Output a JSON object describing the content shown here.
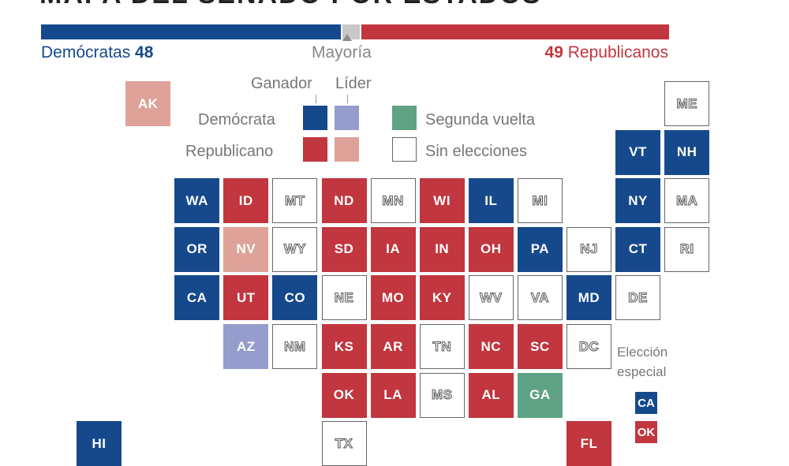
{
  "title": "MAPA DEL SENADO POR ESTADOS",
  "colors": {
    "dem_winner": "#16498c",
    "dem_leader": "#959dcc",
    "rep_winner": "#c1363f",
    "rep_leader": "#dea298",
    "runoff": "#5fa384",
    "none": "#ffffff",
    "majority_gap": "#c8c8c8"
  },
  "summary": {
    "dem_label": "Demócratas",
    "dem_count": "48",
    "rep_count": "49",
    "rep_label": "Republicanos",
    "majority_label": "Mayoría",
    "dem_seats": 48,
    "gap_seats": 3,
    "rep_seats": 49
  },
  "legend": {
    "winner": "Ganador",
    "leader": "Líder",
    "democrat": "Demócrata",
    "republican": "Republicano",
    "runoff": "Segunda vuelta",
    "no_election": "Sin elecciones"
  },
  "special": {
    "line1": "Elección",
    "line2": "especial",
    "items": [
      {
        "abbr": "CA",
        "status": "dem_winner"
      },
      {
        "abbr": "OK",
        "status": "rep_winner"
      }
    ]
  },
  "states": [
    {
      "abbr": "AK",
      "col": 1,
      "row": 0,
      "status": "rep_leader"
    },
    {
      "abbr": "ME",
      "col": 12,
      "row": 0,
      "status": "none"
    },
    {
      "abbr": "VT",
      "col": 11,
      "row": 1,
      "status": "dem_winner"
    },
    {
      "abbr": "NH",
      "col": 12,
      "row": 1,
      "status": "dem_winner"
    },
    {
      "abbr": "WA",
      "col": 2,
      "row": 2,
      "status": "dem_winner"
    },
    {
      "abbr": "ID",
      "col": 3,
      "row": 2,
      "status": "rep_winner"
    },
    {
      "abbr": "MT",
      "col": 4,
      "row": 2,
      "status": "none"
    },
    {
      "abbr": "ND",
      "col": 5,
      "row": 2,
      "status": "rep_winner"
    },
    {
      "abbr": "MN",
      "col": 6,
      "row": 2,
      "status": "none"
    },
    {
      "abbr": "WI",
      "col": 7,
      "row": 2,
      "status": "rep_winner"
    },
    {
      "abbr": "IL",
      "col": 8,
      "row": 2,
      "status": "dem_winner"
    },
    {
      "abbr": "MI",
      "col": 9,
      "row": 2,
      "status": "none"
    },
    {
      "abbr": "NY",
      "col": 11,
      "row": 2,
      "status": "dem_winner"
    },
    {
      "abbr": "MA",
      "col": 12,
      "row": 2,
      "status": "none"
    },
    {
      "abbr": "OR",
      "col": 2,
      "row": 3,
      "status": "dem_winner"
    },
    {
      "abbr": "NV",
      "col": 3,
      "row": 3,
      "status": "rep_leader"
    },
    {
      "abbr": "WY",
      "col": 4,
      "row": 3,
      "status": "none"
    },
    {
      "abbr": "SD",
      "col": 5,
      "row": 3,
      "status": "rep_winner"
    },
    {
      "abbr": "IA",
      "col": 6,
      "row": 3,
      "status": "rep_winner"
    },
    {
      "abbr": "IN",
      "col": 7,
      "row": 3,
      "status": "rep_winner"
    },
    {
      "abbr": "OH",
      "col": 8,
      "row": 3,
      "status": "rep_winner"
    },
    {
      "abbr": "PA",
      "col": 9,
      "row": 3,
      "status": "dem_winner"
    },
    {
      "abbr": "NJ",
      "col": 10,
      "row": 3,
      "status": "none"
    },
    {
      "abbr": "CT",
      "col": 11,
      "row": 3,
      "status": "dem_winner"
    },
    {
      "abbr": "RI",
      "col": 12,
      "row": 3,
      "status": "none"
    },
    {
      "abbr": "CA",
      "col": 2,
      "row": 4,
      "status": "dem_winner"
    },
    {
      "abbr": "UT",
      "col": 3,
      "row": 4,
      "status": "rep_winner"
    },
    {
      "abbr": "CO",
      "col": 4,
      "row": 4,
      "status": "dem_winner"
    },
    {
      "abbr": "NE",
      "col": 5,
      "row": 4,
      "status": "none"
    },
    {
      "abbr": "MO",
      "col": 6,
      "row": 4,
      "status": "rep_winner"
    },
    {
      "abbr": "KY",
      "col": 7,
      "row": 4,
      "status": "rep_winner"
    },
    {
      "abbr": "WV",
      "col": 8,
      "row": 4,
      "status": "none"
    },
    {
      "abbr": "VA",
      "col": 9,
      "row": 4,
      "status": "none"
    },
    {
      "abbr": "MD",
      "col": 10,
      "row": 4,
      "status": "dem_winner"
    },
    {
      "abbr": "DE",
      "col": 11,
      "row": 4,
      "status": "none"
    },
    {
      "abbr": "AZ",
      "col": 3,
      "row": 5,
      "status": "dem_leader"
    },
    {
      "abbr": "NM",
      "col": 4,
      "row": 5,
      "status": "none"
    },
    {
      "abbr": "KS",
      "col": 5,
      "row": 5,
      "status": "rep_winner"
    },
    {
      "abbr": "AR",
      "col": 6,
      "row": 5,
      "status": "rep_winner"
    },
    {
      "abbr": "TN",
      "col": 7,
      "row": 5,
      "status": "none"
    },
    {
      "abbr": "NC",
      "col": 8,
      "row": 5,
      "status": "rep_winner"
    },
    {
      "abbr": "SC",
      "col": 9,
      "row": 5,
      "status": "rep_winner"
    },
    {
      "abbr": "DC",
      "col": 10,
      "row": 5,
      "status": "none"
    },
    {
      "abbr": "OK",
      "col": 5,
      "row": 6,
      "status": "rep_winner"
    },
    {
      "abbr": "LA",
      "col": 6,
      "row": 6,
      "status": "rep_winner"
    },
    {
      "abbr": "MS",
      "col": 7,
      "row": 6,
      "status": "none"
    },
    {
      "abbr": "AL",
      "col": 8,
      "row": 6,
      "status": "rep_winner"
    },
    {
      "abbr": "GA",
      "col": 9,
      "row": 6,
      "status": "runoff"
    },
    {
      "abbr": "HI",
      "col": 0,
      "row": 7,
      "status": "dem_winner"
    },
    {
      "abbr": "TX",
      "col": 5,
      "row": 7,
      "status": "none"
    },
    {
      "abbr": "FL",
      "col": 10,
      "row": 7,
      "status": "rep_winner"
    }
  ]
}
